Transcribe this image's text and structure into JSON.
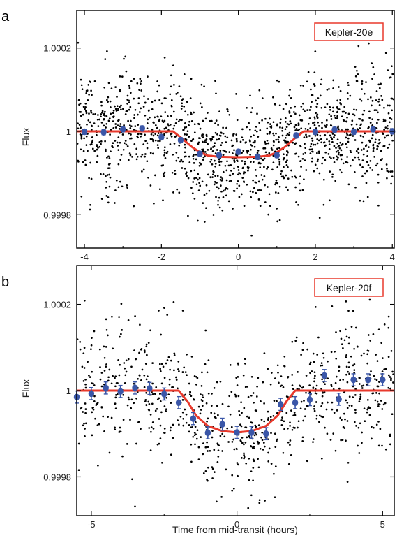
{
  "chart_data": [
    {
      "type": "scatter",
      "panel_label": "a",
      "legend_label": "Kepler-20e",
      "ylabel": "Flux",
      "xlabel": "",
      "xlim": [
        -4.2,
        4.05
      ],
      "ylim": [
        0.99972,
        1.00029
      ],
      "xticks": [
        -4,
        -2,
        0,
        2,
        4
      ],
      "xtick_labels": [
        "-4",
        "-2",
        "0",
        "2",
        "4"
      ],
      "yticks": [
        0.9998,
        1.0,
        1.0002
      ],
      "ytick_labels": [
        "0.9998",
        "1",
        "1.0002"
      ],
      "model_curve": {
        "color": "#e8392c",
        "x": [
          -4.2,
          -1.7,
          -1.45,
          -1.2,
          -1.0,
          -0.8,
          -0.5,
          0.0,
          0.5,
          0.8,
          1.0,
          1.2,
          1.45,
          1.7,
          4.05
        ],
        "y": [
          1.0,
          1.0,
          0.999982,
          0.999962,
          0.99995,
          0.999942,
          0.999939,
          0.999938,
          0.999939,
          0.999942,
          0.99995,
          0.999962,
          0.999982,
          1.0,
          1.0
        ]
      },
      "binned_data": {
        "color": "#3a56a8",
        "x": [
          -4.0,
          -3.5,
          -3.0,
          -2.5,
          -2.0,
          -1.5,
          -1.0,
          -0.5,
          0.0,
          0.5,
          1.0,
          1.5,
          2.0,
          2.5,
          3.0,
          3.5,
          4.0
        ],
        "y": [
          0.999999,
          0.999998,
          1.000005,
          1.000007,
          0.999986,
          0.999979,
          0.999946,
          0.999943,
          0.999951,
          0.999939,
          0.999943,
          0.99999,
          0.999999,
          1.000004,
          0.999999,
          1.000005,
          1.0
        ],
        "err": [
          6e-06,
          6e-06,
          6e-06,
          6e-06,
          6e-06,
          6e-06,
          6e-06,
          6e-06,
          6e-06,
          6e-06,
          6e-06,
          6e-06,
          6e-06,
          6e-06,
          6e-06,
          6e-06,
          6e-06
        ]
      },
      "raw_points": {
        "color": "#000000",
        "approx_count": 1400,
        "x_range": [
          -4.2,
          4.05
        ],
        "baseline_scatter": 7e-05
      }
    },
    {
      "type": "scatter",
      "panel_label": "b",
      "legend_label": "Kepler-20f",
      "ylabel": "Flux",
      "xlabel": "Time from mid-transit (hours)",
      "xlim": [
        -5.5,
        5.4
      ],
      "ylim": [
        0.99971,
        1.00029
      ],
      "xticks": [
        -5,
        0,
        5
      ],
      "xtick_labels": [
        "-5",
        "0",
        "5"
      ],
      "yticks": [
        0.9998,
        1.0,
        1.0002
      ],
      "ytick_labels": [
        "0.9998",
        "1",
        "1.0002"
      ],
      "model_curve": {
        "color": "#e8392c",
        "x": [
          -5.5,
          -2.0,
          -1.7,
          -1.4,
          -1.0,
          -0.5,
          0.0,
          0.5,
          1.0,
          1.4,
          1.7,
          2.0,
          5.4
        ],
        "y": [
          1.0,
          1.0,
          0.999975,
          0.999942,
          0.999918,
          0.999906,
          0.999903,
          0.999906,
          0.999918,
          0.999942,
          0.999975,
          1.0,
          1.0
        ]
      },
      "binned_data": {
        "color": "#3a56a8",
        "x": [
          -5.5,
          -5.0,
          -4.5,
          -4.0,
          -3.5,
          -3.0,
          -2.5,
          -2.0,
          -1.5,
          -1.0,
          -0.5,
          0.0,
          0.5,
          1.0,
          1.5,
          2.0,
          2.5,
          3.0,
          3.5,
          4.0,
          4.5,
          5.0
        ],
        "y": [
          0.999985,
          0.999993,
          1.000006,
          0.999998,
          1.000006,
          1.000005,
          0.999992,
          0.999972,
          0.999935,
          0.999902,
          0.999922,
          0.999903,
          0.999903,
          0.9999,
          0.999968,
          0.999972,
          0.999979,
          1.000035,
          0.99998,
          1.000025,
          1.000025,
          1.000025
        ],
        "err": [
          1.4e-05,
          1.4e-05,
          1.4e-05,
          1.4e-05,
          1.4e-05,
          1.4e-05,
          1.4e-05,
          1.4e-05,
          1.4e-05,
          1.4e-05,
          1.4e-05,
          1.4e-05,
          1.4e-05,
          1.4e-05,
          1.4e-05,
          1.4e-05,
          1.4e-05,
          1.4e-05,
          1.4e-05,
          1.4e-05,
          1.4e-05,
          1.4e-05
        ]
      },
      "raw_points": {
        "color": "#000000",
        "approx_count": 850,
        "x_range": [
          -5.5,
          5.4
        ],
        "baseline_scatter": 8e-05
      }
    }
  ]
}
